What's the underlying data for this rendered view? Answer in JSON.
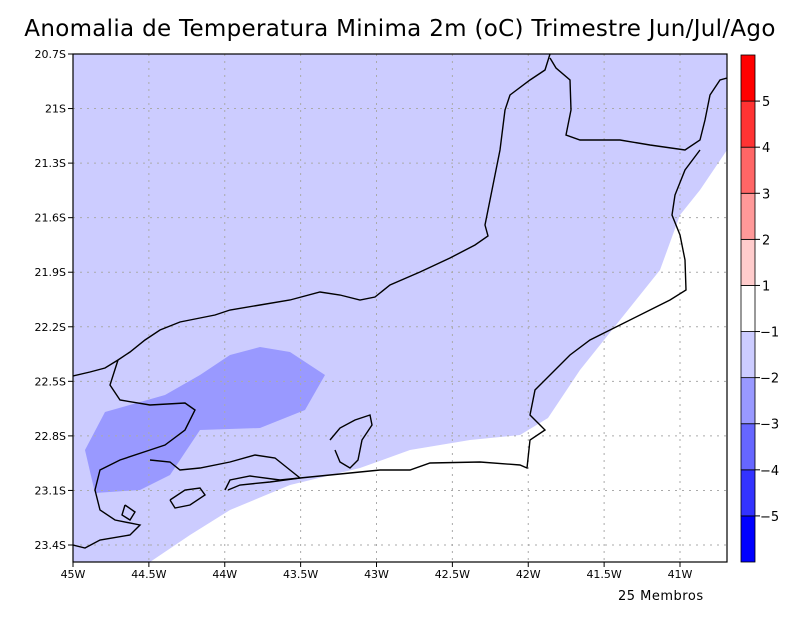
{
  "title": "Anomalia de Temperatura Minima 2m (oC) Trimestre Jun/Jul/Ago",
  "footer": "25 Membros",
  "map": {
    "lon_range": [
      -45.0,
      -40.69
    ],
    "lat_range": [
      -23.49,
      -20.7
    ],
    "x_ticks": [
      {
        "value": -45.0,
        "label": "45W"
      },
      {
        "value": -44.5,
        "label": "44.5W"
      },
      {
        "value": -44.0,
        "label": "44W"
      },
      {
        "value": -43.5,
        "label": "43.5W"
      },
      {
        "value": -43.0,
        "label": "43W"
      },
      {
        "value": -42.5,
        "label": "42.5W"
      },
      {
        "value": -42.0,
        "label": "42W"
      },
      {
        "value": -41.5,
        "label": "41.5W"
      },
      {
        "value": -41.0,
        "label": "41W"
      }
    ],
    "y_ticks": [
      {
        "value": -20.7,
        "label": "20.7S"
      },
      {
        "value": -21.0,
        "label": "21S"
      },
      {
        "value": -21.3,
        "label": "21.3S"
      },
      {
        "value": -21.6,
        "label": "21.6S"
      },
      {
        "value": -21.9,
        "label": "21.9S"
      },
      {
        "value": -22.2,
        "label": "22.2S"
      },
      {
        "value": -22.5,
        "label": "22.5S"
      },
      {
        "value": -22.8,
        "label": "22.8S"
      },
      {
        "value": -23.1,
        "label": "23.1S"
      },
      {
        "value": -23.4,
        "label": "23.4S"
      }
    ]
  },
  "colorbar": {
    "colors": [
      "#0000ff",
      "#3333ff",
      "#6666ff",
      "#9999ff",
      "#ccccff",
      "#ffffff",
      "#ffcccc",
      "#ff9999",
      "#ff6666",
      "#ff3333",
      "#ff0000"
    ],
    "labels": [
      "-5",
      "-4",
      "-3",
      "-2",
      "-1",
      "1",
      "2",
      "3",
      "4",
      "5"
    ]
  }
}
